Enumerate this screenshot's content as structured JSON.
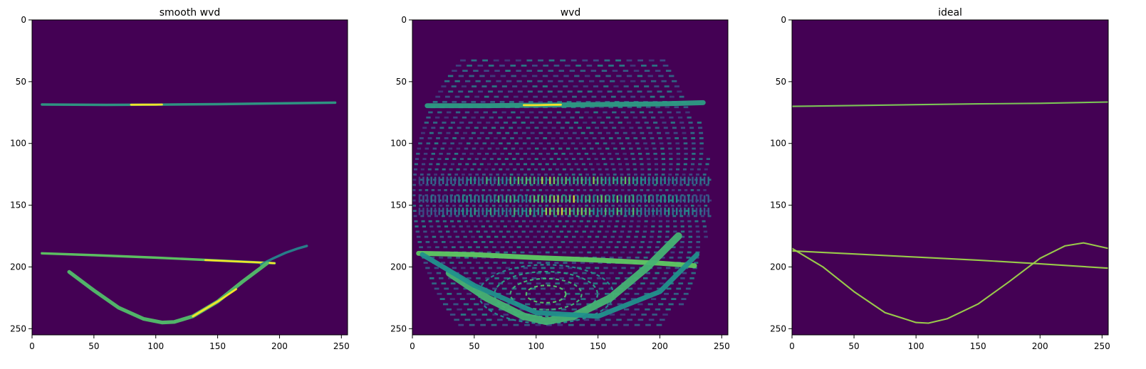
{
  "chart_data": [
    {
      "type": "heatmap",
      "title": "smooth wvd",
      "xlim": [
        0,
        255
      ],
      "ylim": [
        255,
        0
      ],
      "xticks": [
        0,
        50,
        100,
        150,
        200,
        250
      ],
      "yticks": [
        0,
        50,
        100,
        150,
        200,
        250
      ],
      "colormap": "viridis",
      "background_value": 0,
      "features": [
        {
          "kind": "line",
          "x": [
            8,
            60,
            100,
            150,
            200,
            245
          ],
          "y": [
            68.5,
            68.8,
            68.6,
            68.2,
            67.6,
            67
          ],
          "value": 0.55,
          "width": 2
        },
        {
          "kind": "line",
          "x": [
            80,
            90,
            100,
            105
          ],
          "y": [
            68.7,
            68.6,
            68.6,
            68.5
          ],
          "value": 1.0,
          "width": 1.6
        },
        {
          "kind": "line",
          "x": [
            8,
            50,
            100,
            150,
            196
          ],
          "y": [
            189,
            190.5,
            192.5,
            194.8,
            197
          ],
          "value": 0.75,
          "width": 2
        },
        {
          "kind": "line",
          "x": [
            140,
            160,
            180,
            196
          ],
          "y": [
            194.5,
            195.3,
            196.2,
            197
          ],
          "value": 1.0,
          "width": 1.4
        },
        {
          "kind": "line",
          "x": [
            185,
            195,
            205,
            215,
            222
          ],
          "y": [
            198,
            193,
            188.5,
            185,
            183
          ],
          "value": 0.45,
          "width": 2
        },
        {
          "kind": "line",
          "x": [
            30,
            50,
            70,
            90,
            105,
            115,
            130,
            150,
            170,
            190
          ],
          "y": [
            204,
            219,
            233,
            242,
            245,
            244.5,
            240,
            228,
            212,
            197
          ],
          "value": 0.7,
          "width": 3
        },
        {
          "kind": "line",
          "x": [
            130,
            150,
            165
          ],
          "y": [
            240,
            228,
            218
          ],
          "value": 1.0,
          "width": 1.6
        }
      ]
    },
    {
      "type": "heatmap",
      "title": "wvd",
      "xlim": [
        0,
        255
      ],
      "ylim": [
        255,
        0
      ],
      "xticks": [
        0,
        50,
        100,
        150,
        200,
        250
      ],
      "yticks": [
        0,
        50,
        100,
        150,
        200,
        250
      ],
      "colormap": "viridis",
      "background_value": 0,
      "features": [
        {
          "kind": "interference",
          "x_range": [
            5,
            245
          ],
          "y_range": [
            32,
            250
          ],
          "center": [
            120,
            140
          ],
          "value": 0.35
        },
        {
          "kind": "dots",
          "x_range": [
            5,
            240
          ],
          "y": [
            130,
            145,
            155
          ],
          "value": 0.85
        },
        {
          "kind": "rings",
          "center": [
            108,
            222
          ],
          "radii": [
            10,
            18,
            26,
            34
          ],
          "value": 0.7
        },
        {
          "kind": "line",
          "x": [
            12,
            60,
            100,
            150,
            200,
            235
          ],
          "y": [
            69.5,
            69.5,
            69,
            68.5,
            68,
            67
          ],
          "value": 0.55,
          "width": 4
        },
        {
          "kind": "line",
          "x": [
            90,
            100,
            110,
            120
          ],
          "y": [
            69,
            69,
            68.8,
            68.7
          ],
          "value": 1.0,
          "width": 1.6
        },
        {
          "kind": "line",
          "x": [
            5,
            50,
            100,
            150,
            200,
            228
          ],
          "y": [
            189,
            190,
            192.5,
            194.5,
            197,
            199
          ],
          "value": 0.75,
          "width": 4
        },
        {
          "kind": "line",
          "x": [
            30,
            60,
            90,
            108,
            130,
            160,
            190,
            215
          ],
          "y": [
            205,
            225,
            240,
            244,
            240,
            225,
            200,
            175
          ],
          "value": 0.65,
          "width": 6
        },
        {
          "kind": "line",
          "x": [
            8,
            50,
            100,
            150,
            200,
            230
          ],
          "y": [
            190,
            215,
            237,
            240,
            220,
            190
          ],
          "value": 0.5,
          "width": 4
        }
      ]
    },
    {
      "type": "heatmap",
      "title": "ideal",
      "xlim": [
        0,
        255
      ],
      "ylim": [
        255,
        0
      ],
      "xticks": [
        0,
        50,
        100,
        150,
        200,
        250
      ],
      "yticks": [
        0,
        50,
        100,
        150,
        200,
        250
      ],
      "colormap": "viridis",
      "background_value": 0,
      "features": [
        {
          "kind": "line",
          "x": [
            0,
            50,
            100,
            150,
            200,
            255
          ],
          "y": [
            70,
            69.3,
            68.6,
            68,
            67.5,
            66.5
          ],
          "value": 0.8,
          "width": 1.2
        },
        {
          "kind": "line",
          "x": [
            0,
            50,
            100,
            150,
            200,
            255
          ],
          "y": [
            187,
            189.5,
            192,
            194.5,
            197.5,
            201
          ],
          "value": 0.85,
          "width": 1.2
        },
        {
          "kind": "line",
          "x": [
            0,
            25,
            50,
            75,
            100,
            110,
            125,
            150,
            175,
            200,
            220,
            235,
            255
          ],
          "y": [
            185,
            200,
            220,
            237,
            245,
            245.5,
            242,
            230,
            212,
            193,
            183,
            180.5,
            185
          ],
          "value": 0.85,
          "width": 1.2
        }
      ]
    }
  ]
}
